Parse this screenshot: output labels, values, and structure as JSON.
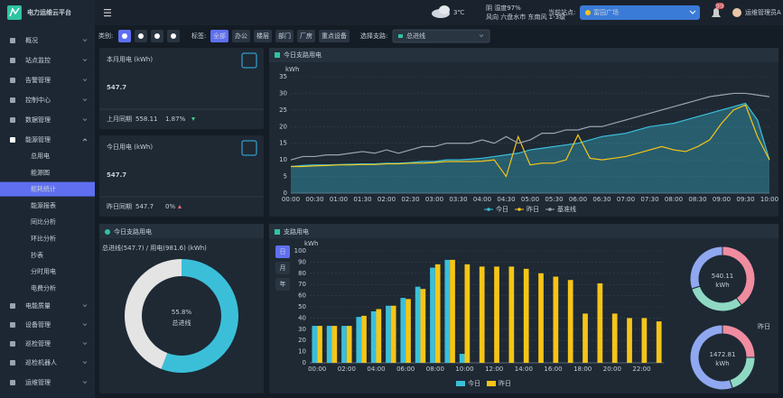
{
  "header": {
    "logo": "电力运维云平台",
    "temperature": "3℃",
    "weather": "阴 湿度97%",
    "wind": "风向 六盘水市 东南风 1-3级",
    "site_label": "当前站点:",
    "site": "富园广场",
    "badge": "99",
    "user": "运维管理员A"
  },
  "sidebar": {
    "menu_top": [
      "概况",
      "站点监控",
      "告警管理",
      "控制中心",
      "数据管理",
      "能源管理"
    ],
    "submenu": [
      "总用电",
      "能源图",
      "能耗统计",
      "能源报表",
      "同比分析",
      "环比分析",
      "抄表",
      "分时用电",
      "电费分析"
    ],
    "menu_bottom": [
      "电能质量",
      "设备管理",
      "巡检管理",
      "巡检机器人",
      "运维管理"
    ]
  },
  "filters": {
    "category_label": "类别:",
    "tag_label": "标签:",
    "tags": [
      "全部",
      "办公",
      "楼层",
      "部门",
      "厂房",
      "重点设备"
    ],
    "branch_label": "选择支路:",
    "branch": "总进线"
  },
  "cards": [
    {
      "title": "本月用电 (kWh)",
      "value": 547.7,
      "compare_label": "上月同期",
      "compare_value": 558.11,
      "change": "1.87%"
    },
    {
      "title": "今日用电 (kWh)",
      "value": 547.7,
      "compare_label": "昨日同期",
      "compare_value": 547.7,
      "change": "0%"
    }
  ],
  "chart_data": [
    {
      "type": "line",
      "title": "今日支路用电",
      "y_label": "kWh",
      "grid": true,
      "ylim": [
        0,
        35
      ],
      "yticks": [
        0,
        5,
        10,
        15,
        20,
        25,
        30,
        35
      ],
      "categories": [
        "00:00",
        null,
        "00:30",
        null,
        "01:00",
        null,
        "01:30",
        null,
        "02:00",
        null,
        "02:30",
        null,
        "03:00",
        null,
        "03:30",
        null,
        "04:00",
        null,
        "04:30",
        null,
        "05:00",
        null,
        "05:30",
        null,
        "06:00",
        null,
        "06:30",
        null,
        "07:00",
        null,
        "07:30",
        null,
        "08:00",
        null,
        "08:30",
        null,
        "09:00",
        null,
        "09:30",
        null,
        "10:00"
      ],
      "series": [
        {
          "name": "今日",
          "color": "#3bbfd9",
          "area": true,
          "values": [
            8,
            8.3,
            8.5,
            8.5,
            8.6,
            8.7,
            8.8,
            8.8,
            9,
            9,
            9.2,
            9.5,
            9.5,
            10,
            10,
            10.2,
            10.5,
            11,
            11.5,
            12,
            13,
            13.5,
            14,
            14.5,
            15,
            16,
            17,
            17.5,
            18,
            19,
            20,
            20.5,
            21,
            22,
            23,
            24,
            25,
            26,
            27,
            22,
            10
          ]
        },
        {
          "name": "昨日",
          "color": "#f5c518",
          "area": false,
          "values": [
            8,
            8,
            8.2,
            8.3,
            8.5,
            8.5,
            8.6,
            8.6,
            8.8,
            8.8,
            9,
            9,
            9.2,
            9.5,
            9.5,
            9.5,
            9.6,
            10,
            5,
            17,
            8.5,
            9,
            9,
            10,
            17.5,
            10.5,
            10,
            10.5,
            11,
            12,
            13,
            14,
            13,
            12.5,
            14,
            16,
            21,
            25,
            26.5,
            17,
            10
          ]
        },
        {
          "name": "基准线",
          "color": "#9aa5b1",
          "area": false,
          "values": [
            10,
            11,
            11,
            11.5,
            11.5,
            12,
            12.5,
            12,
            13,
            12,
            13,
            14,
            14,
            15,
            15,
            15,
            16,
            15,
            17,
            15,
            16,
            18,
            18,
            19,
            19,
            20,
            20,
            21,
            22,
            23,
            24,
            25,
            26,
            27,
            28,
            29,
            29.5,
            30,
            30,
            29.5,
            29
          ]
        }
      ]
    },
    {
      "type": "donut",
      "title": "今日支路用电",
      "subtitle": "总进线(547.7) / 用电(981.6) (kWh)",
      "center_label": "总进线",
      "values": [
        55.8,
        44.2
      ],
      "value_labels": [
        "55.8%",
        null
      ],
      "colors": [
        "#3bbfd9",
        "#e4e4e4"
      ]
    },
    {
      "type": "bar",
      "title": "支路用电",
      "y_label": "kWh",
      "grid": true,
      "buttons": [
        "日",
        "月",
        "年"
      ],
      "ylim": [
        0,
        100
      ],
      "yticks": [
        0,
        10,
        20,
        30,
        40,
        50,
        60,
        70,
        80,
        90,
        100
      ],
      "categories": [
        "00:00",
        null,
        "02:00",
        null,
        "04:00",
        null,
        "06:00",
        null,
        "08:00",
        null,
        "10:00",
        null,
        "12:00",
        null,
        "14:00",
        null,
        "16:00",
        null,
        "18:00",
        null,
        "20:00",
        null,
        "22:00",
        null
      ],
      "series": [
        {
          "name": "今日",
          "color": "#3bbfd9",
          "values": [
            33,
            33,
            33,
            41,
            46,
            51,
            58,
            68,
            85,
            92,
            8,
            null,
            null,
            null,
            null,
            null,
            null,
            null,
            null,
            null,
            null,
            null,
            null,
            null
          ]
        },
        {
          "name": "昨日",
          "color": "#f5c518",
          "values": [
            33,
            33,
            33,
            42,
            48,
            51,
            57,
            66,
            88,
            92,
            88,
            86,
            86,
            86,
            84,
            80,
            77,
            74,
            44,
            71,
            44,
            40,
            40,
            37
          ]
        }
      ]
    },
    {
      "type": "donut",
      "total": 540.11,
      "unit": "kWh",
      "values": [
        40,
        30,
        30
      ],
      "colors": [
        "#f08ca0",
        "#8fd9c4",
        "#8fa8f0"
      ]
    },
    {
      "type": "donut",
      "label": "昨日",
      "total": 1472.81,
      "unit": "kWh",
      "values": [
        25,
        20,
        55
      ],
      "colors": [
        "#f08ca0",
        "#8fd9c4",
        "#8fa8f0"
      ]
    }
  ]
}
